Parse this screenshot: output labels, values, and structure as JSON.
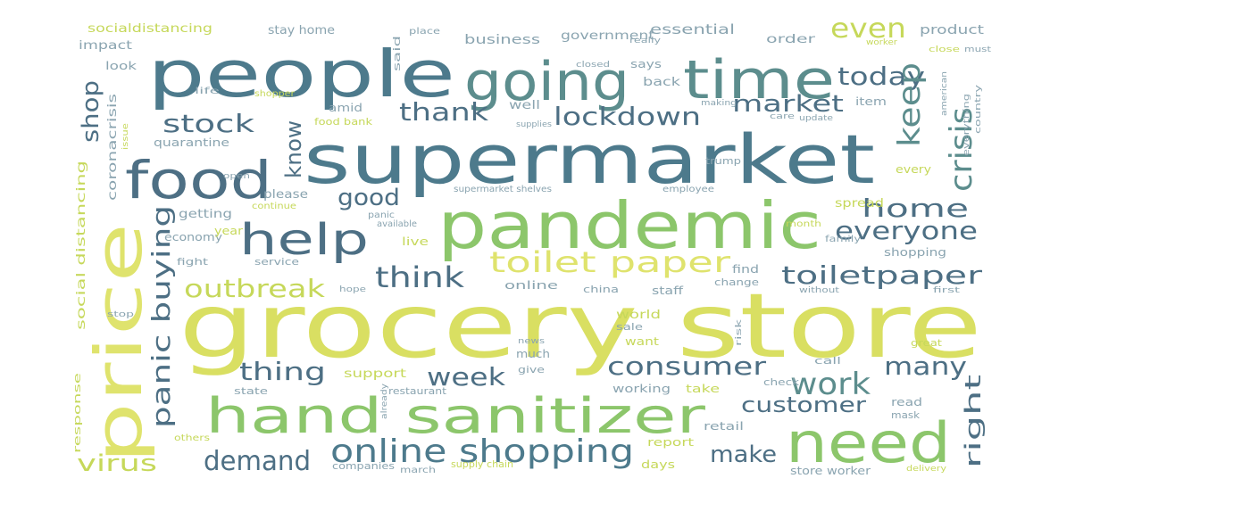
{
  "words": [
    {
      "text": "grocery store",
      "color": "#d9df62"
    },
    {
      "text": "supermarket",
      "color": "#4d7a8c"
    },
    {
      "text": "people",
      "color": "#4d7a8c"
    },
    {
      "text": "pandemic",
      "color": "#8cc66b"
    },
    {
      "text": "price",
      "color": "#dfe36d"
    },
    {
      "text": "time",
      "color": "#5c8d8d"
    },
    {
      "text": "going",
      "color": "#5c8d8d"
    },
    {
      "text": "food",
      "color": "#4d6f84"
    },
    {
      "text": "hand sanitizer",
      "color": "#8cc66b"
    },
    {
      "text": "need",
      "color": "#8cc66b"
    },
    {
      "text": "help",
      "color": "#4d6f84"
    },
    {
      "text": "online shopping",
      "color": "#4d7a8c"
    },
    {
      "text": "toilet paper",
      "color": "#dfe36d"
    },
    {
      "text": "today",
      "color": "#4d6f84"
    },
    {
      "text": "lockdown",
      "color": "#4d6f84"
    },
    {
      "text": "stock",
      "color": "#4d6f84"
    },
    {
      "text": "thank",
      "color": "#4d6f84"
    },
    {
      "text": "market",
      "color": "#4d6f84"
    },
    {
      "text": "everyone",
      "color": "#4d6f84"
    },
    {
      "text": "home",
      "color": "#4d6f84"
    },
    {
      "text": "toiletpaper",
      "color": "#4d6f84"
    },
    {
      "text": "think",
      "color": "#4d6f84"
    },
    {
      "text": "outbreak",
      "color": "#c6d85a"
    },
    {
      "text": "good",
      "color": "#4d6f84"
    },
    {
      "text": "consumer",
      "color": "#4d6f84"
    },
    {
      "text": "thing",
      "color": "#4d6f84"
    },
    {
      "text": "week",
      "color": "#4d6f84"
    },
    {
      "text": "work",
      "color": "#5c8d8d"
    },
    {
      "text": "many",
      "color": "#4d6f84"
    },
    {
      "text": "customer",
      "color": "#4d6f84"
    },
    {
      "text": "demand",
      "color": "#4d6f84"
    },
    {
      "text": "make",
      "color": "#4d6f84"
    },
    {
      "text": "virus",
      "color": "#c6d85a"
    },
    {
      "text": "even",
      "color": "#c6d85a"
    },
    {
      "text": "panic buying",
      "color": "#4d6f84"
    },
    {
      "text": "crisis",
      "color": "#5c8d8d"
    },
    {
      "text": "keep",
      "color": "#5c8d8d"
    },
    {
      "text": "know",
      "color": "#4d6f84"
    },
    {
      "text": "shop",
      "color": "#4d6f84"
    },
    {
      "text": "right",
      "color": "#4d6f84"
    },
    {
      "text": "socialdistancing",
      "color": "#c6d85a"
    },
    {
      "text": "stay home",
      "color": "#8aa4b0"
    },
    {
      "text": "government",
      "color": "#8aa4b0"
    },
    {
      "text": "essential",
      "color": "#8aa4b0"
    },
    {
      "text": "product",
      "color": "#8aa4b0"
    },
    {
      "text": "impact",
      "color": "#8aa4b0"
    },
    {
      "text": "business",
      "color": "#8aa4b0"
    },
    {
      "text": "order",
      "color": "#8aa4b0"
    },
    {
      "text": "look",
      "color": "#8aa4b0"
    },
    {
      "text": "says",
      "color": "#8aa4b0"
    },
    {
      "text": "back",
      "color": "#8aa4b0"
    },
    {
      "text": "amid",
      "color": "#8aa4b0"
    },
    {
      "text": "well",
      "color": "#8aa4b0"
    },
    {
      "text": "item",
      "color": "#8aa4b0"
    },
    {
      "text": "food bank",
      "color": "#c6d85a"
    },
    {
      "text": "quarantine",
      "color": "#8aa4b0"
    },
    {
      "text": "coronacrisis",
      "color": "#8aa4b0"
    },
    {
      "text": "social distancing",
      "color": "#c6d85a"
    },
    {
      "text": "please",
      "color": "#8aa4b0"
    },
    {
      "text": "getting",
      "color": "#8aa4b0"
    },
    {
      "text": "spread",
      "color": "#c6d85a"
    },
    {
      "text": "economy",
      "color": "#8aa4b0"
    },
    {
      "text": "year",
      "color": "#c6d85a"
    },
    {
      "text": "live",
      "color": "#c6d85a"
    },
    {
      "text": "shopping",
      "color": "#8aa4b0"
    },
    {
      "text": "fight",
      "color": "#8aa4b0"
    },
    {
      "text": "service",
      "color": "#8aa4b0"
    },
    {
      "text": "find",
      "color": "#8aa4b0"
    },
    {
      "text": "online",
      "color": "#8aa4b0"
    },
    {
      "text": "china",
      "color": "#8aa4b0"
    },
    {
      "text": "staff",
      "color": "#8aa4b0"
    },
    {
      "text": "change",
      "color": "#8aa4b0"
    },
    {
      "text": "world",
      "color": "#c6d85a"
    },
    {
      "text": "sale",
      "color": "#8aa4b0"
    },
    {
      "text": "want",
      "color": "#c6d85a"
    },
    {
      "text": "much",
      "color": "#8aa4b0"
    },
    {
      "text": "support",
      "color": "#c6d85a"
    },
    {
      "text": "give",
      "color": "#8aa4b0"
    },
    {
      "text": "call",
      "color": "#8aa4b0"
    },
    {
      "text": "great",
      "color": "#c6d85a"
    },
    {
      "text": "state",
      "color": "#8aa4b0"
    },
    {
      "text": "restaurant",
      "color": "#8aa4b0"
    },
    {
      "text": "working",
      "color": "#8aa4b0"
    },
    {
      "text": "take",
      "color": "#c6d85a"
    },
    {
      "text": "check",
      "color": "#8aa4b0"
    },
    {
      "text": "read",
      "color": "#8aa4b0"
    },
    {
      "text": "mask",
      "color": "#8aa4b0"
    },
    {
      "text": "retail",
      "color": "#8aa4b0"
    },
    {
      "text": "report",
      "color": "#c6d85a"
    },
    {
      "text": "days",
      "color": "#c6d85a"
    },
    {
      "text": "store worker",
      "color": "#8aa4b0"
    },
    {
      "text": "response",
      "color": "#c6d85a"
    },
    {
      "text": "others",
      "color": "#c6d85a"
    },
    {
      "text": "march",
      "color": "#8aa4b0"
    },
    {
      "text": "supply chain",
      "color": "#c6d85a"
    },
    {
      "text": "companies",
      "color": "#8aa4b0"
    },
    {
      "text": "every",
      "color": "#c6d85a"
    },
    {
      "text": "trump",
      "color": "#8aa4b0"
    },
    {
      "text": "employee",
      "color": "#8aa4b0"
    },
    {
      "text": "supermarket shelves",
      "color": "#8aa4b0"
    },
    {
      "text": "month",
      "color": "#c6d85a"
    },
    {
      "text": "family",
      "color": "#8aa4b0"
    },
    {
      "text": "available",
      "color": "#8aa4b0"
    },
    {
      "text": "panic",
      "color": "#8aa4b0"
    },
    {
      "text": "continue",
      "color": "#c6d85a"
    },
    {
      "text": "said",
      "color": "#8aa4b0"
    },
    {
      "text": "place",
      "color": "#8aa4b0"
    },
    {
      "text": "really",
      "color": "#8aa4b0"
    },
    {
      "text": "worker",
      "color": "#c6d85a"
    },
    {
      "text": "must",
      "color": "#8aa4b0"
    },
    {
      "text": "close",
      "color": "#c6d85a"
    },
    {
      "text": "life",
      "color": "#8aa4b0"
    },
    {
      "text": "shopper",
      "color": "#c6d85a"
    },
    {
      "text": "making",
      "color": "#8aa4b0"
    },
    {
      "text": "supplies",
      "color": "#8aa4b0"
    },
    {
      "text": "update",
      "color": "#8aa4b0"
    },
    {
      "text": "care",
      "color": "#8aa4b0"
    },
    {
      "text": "american",
      "color": "#8aa4b0"
    },
    {
      "text": "country",
      "color": "#8aa4b0"
    },
    {
      "text": "open",
      "color": "#8aa4b0"
    },
    {
      "text": "stop",
      "color": "#8aa4b0"
    },
    {
      "text": "hope",
      "color": "#8aa4b0"
    },
    {
      "text": "without",
      "color": "#8aa4b0"
    },
    {
      "text": "first",
      "color": "#8aa4b0"
    },
    {
      "text": "risk",
      "color": "#8aa4b0"
    },
    {
      "text": "news",
      "color": "#8aa4b0"
    },
    {
      "text": "already",
      "color": "#8aa4b0"
    },
    {
      "text": "closed",
      "color": "#8aa4b0"
    },
    {
      "text": "delivery",
      "color": "#c6d85a"
    },
    {
      "text": "everything",
      "color": "#8aa4b0"
    },
    {
      "text": "issue",
      "color": "#c6d85a"
    }
  ]
}
